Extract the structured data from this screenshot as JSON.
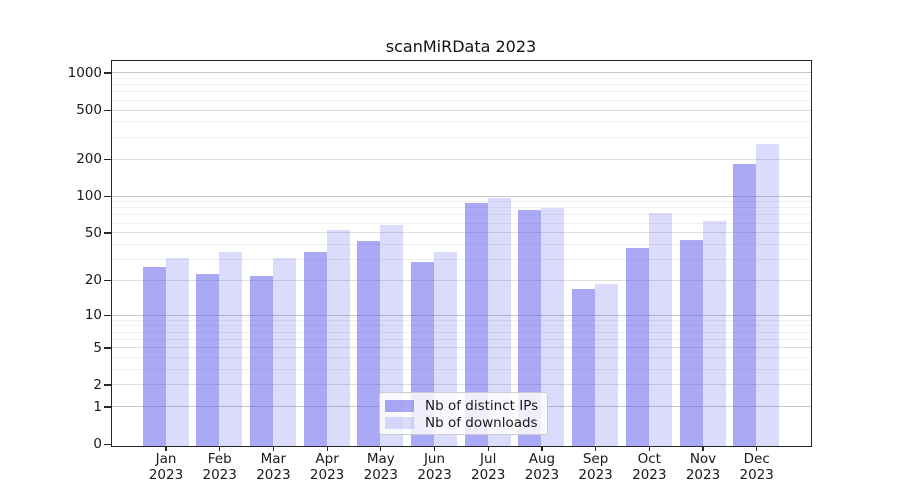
{
  "chart_data": {
    "type": "bar",
    "title": "scanMiRData 2023",
    "categories": [
      "Jan 2023",
      "Feb 2023",
      "Mar 2023",
      "Apr 2023",
      "May 2023",
      "Jun 2023",
      "Jul 2023",
      "Aug 2023",
      "Sep 2023",
      "Oct 2023",
      "Nov 2023",
      "Dec 2023"
    ],
    "series": [
      {
        "name": "Nb of distinct IPs",
        "values": [
          26,
          23,
          22,
          35,
          43,
          29,
          89,
          77,
          17,
          38,
          44,
          184
        ]
      },
      {
        "name": "Nb of downloads",
        "values": [
          31,
          35,
          31,
          53,
          58,
          35,
          97,
          81,
          19,
          73,
          63,
          270
        ]
      }
    ],
    "xlabel": "",
    "ylabel": "",
    "y_scale": "log1p",
    "y_ticks": [
      0,
      1,
      2,
      5,
      10,
      20,
      50,
      100,
      200,
      500,
      1000
    ],
    "y_minor_ticks": [
      3,
      4,
      6,
      7,
      8,
      9,
      30,
      40,
      60,
      70,
      80,
      90,
      300,
      400,
      600,
      700,
      800,
      900
    ],
    "ylim": [
      0,
      1250
    ],
    "grid": true,
    "legend_position": "lower center"
  },
  "colors": {
    "bar_distinct_ips": "rgba(90,90,235,0.52)",
    "bar_downloads": "rgba(90,90,235,0.22)",
    "grid_major": "#c6c6c6",
    "grid_mid": "#dedede",
    "grid_minor": "#efefef",
    "spine": "#262626"
  }
}
